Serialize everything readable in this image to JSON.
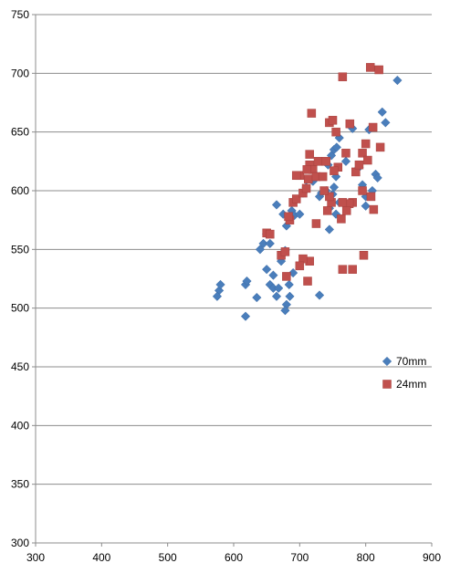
{
  "chart_data": {
    "type": "scatter",
    "xlim": [
      300,
      900
    ],
    "ylim": [
      300,
      750
    ],
    "x_ticks": [
      "300",
      "400",
      "500",
      "600",
      "700",
      "800",
      "900"
    ],
    "y_ticks": [
      "300",
      "350",
      "400",
      "450",
      "500",
      "550",
      "600",
      "650",
      "700",
      "750"
    ],
    "grid": "horizontal",
    "legend_position": "right",
    "series": [
      {
        "name": "70mm",
        "color": "#4a7ebb",
        "marker": "diamond",
        "points": [
          [
            578,
            515
          ],
          [
            580,
            520
          ],
          [
            575,
            510
          ],
          [
            618,
            520
          ],
          [
            620,
            523
          ],
          [
            618,
            493
          ],
          [
            635,
            509
          ],
          [
            640,
            550
          ],
          [
            645,
            555
          ],
          [
            650,
            563
          ],
          [
            655,
            555
          ],
          [
            650,
            533
          ],
          [
            655,
            520
          ],
          [
            660,
            528
          ],
          [
            665,
            510
          ],
          [
            660,
            517
          ],
          [
            668,
            517
          ],
          [
            672,
            540
          ],
          [
            678,
            549
          ],
          [
            680,
            570
          ],
          [
            688,
            583
          ],
          [
            692,
            579
          ],
          [
            665,
            588
          ],
          [
            675,
            580
          ],
          [
            684,
            520
          ],
          [
            685,
            510
          ],
          [
            680,
            503
          ],
          [
            678,
            498
          ],
          [
            690,
            530
          ],
          [
            700,
            580
          ],
          [
            705,
            598
          ],
          [
            710,
            603
          ],
          [
            720,
            608
          ],
          [
            725,
            613
          ],
          [
            730,
            595
          ],
          [
            733,
            598
          ],
          [
            740,
            600
          ],
          [
            743,
            622
          ],
          [
            748,
            630
          ],
          [
            752,
            635
          ],
          [
            756,
            637
          ],
          [
            745,
            585
          ],
          [
            750,
            597
          ],
          [
            752,
            603
          ],
          [
            755,
            580
          ],
          [
            760,
            590
          ],
          [
            745,
            567
          ],
          [
            730,
            511
          ],
          [
            770,
            625
          ],
          [
            780,
            653
          ],
          [
            790,
            620
          ],
          [
            795,
            605
          ],
          [
            800,
            595
          ],
          [
            800,
            587
          ],
          [
            810,
            600
          ],
          [
            815,
            614
          ],
          [
            818,
            611
          ],
          [
            825,
            667
          ],
          [
            830,
            658
          ],
          [
            805,
            652
          ],
          [
            848,
            694
          ],
          [
            760,
            645
          ],
          [
            755,
            612
          ]
        ]
      },
      {
        "name": "24mm",
        "color": "#c0504d",
        "marker": "square",
        "points": [
          [
            650,
            564
          ],
          [
            655,
            563
          ],
          [
            672,
            545
          ],
          [
            678,
            548
          ],
          [
            680,
            527
          ],
          [
            685,
            575
          ],
          [
            690,
            590
          ],
          [
            695,
            593
          ],
          [
            700,
            613
          ],
          [
            705,
            598
          ],
          [
            710,
            602
          ],
          [
            713,
            610
          ],
          [
            715,
            622
          ],
          [
            720,
            618
          ],
          [
            725,
            612
          ],
          [
            728,
            625
          ],
          [
            718,
            666
          ],
          [
            740,
            625
          ],
          [
            745,
            658
          ],
          [
            750,
            660
          ],
          [
            755,
            650
          ],
          [
            765,
            697
          ],
          [
            770,
            632
          ],
          [
            776,
            657
          ],
          [
            780,
            590
          ],
          [
            785,
            616
          ],
          [
            790,
            622
          ],
          [
            795,
            600
          ],
          [
            795,
            632
          ],
          [
            800,
            640
          ],
          [
            803,
            626
          ],
          [
            807,
            705
          ],
          [
            811,
            654
          ],
          [
            820,
            703
          ],
          [
            822,
            637
          ],
          [
            808,
            595
          ],
          [
            812,
            584
          ],
          [
            775,
            589
          ],
          [
            771,
            583
          ],
          [
            765,
            590
          ],
          [
            763,
            576
          ],
          [
            758,
            620
          ],
          [
            752,
            617
          ],
          [
            748,
            590
          ],
          [
            745,
            595
          ],
          [
            742,
            583
          ],
          [
            737,
            600
          ],
          [
            725,
            572
          ],
          [
            715,
            540
          ],
          [
            712,
            523
          ],
          [
            705,
            542
          ],
          [
            700,
            536
          ],
          [
            765,
            533
          ],
          [
            780,
            533
          ],
          [
            797,
            545
          ],
          [
            683,
            578
          ],
          [
            695,
            613
          ],
          [
            711,
            618
          ],
          [
            715,
            631
          ],
          [
            735,
            612
          ]
        ]
      }
    ]
  }
}
